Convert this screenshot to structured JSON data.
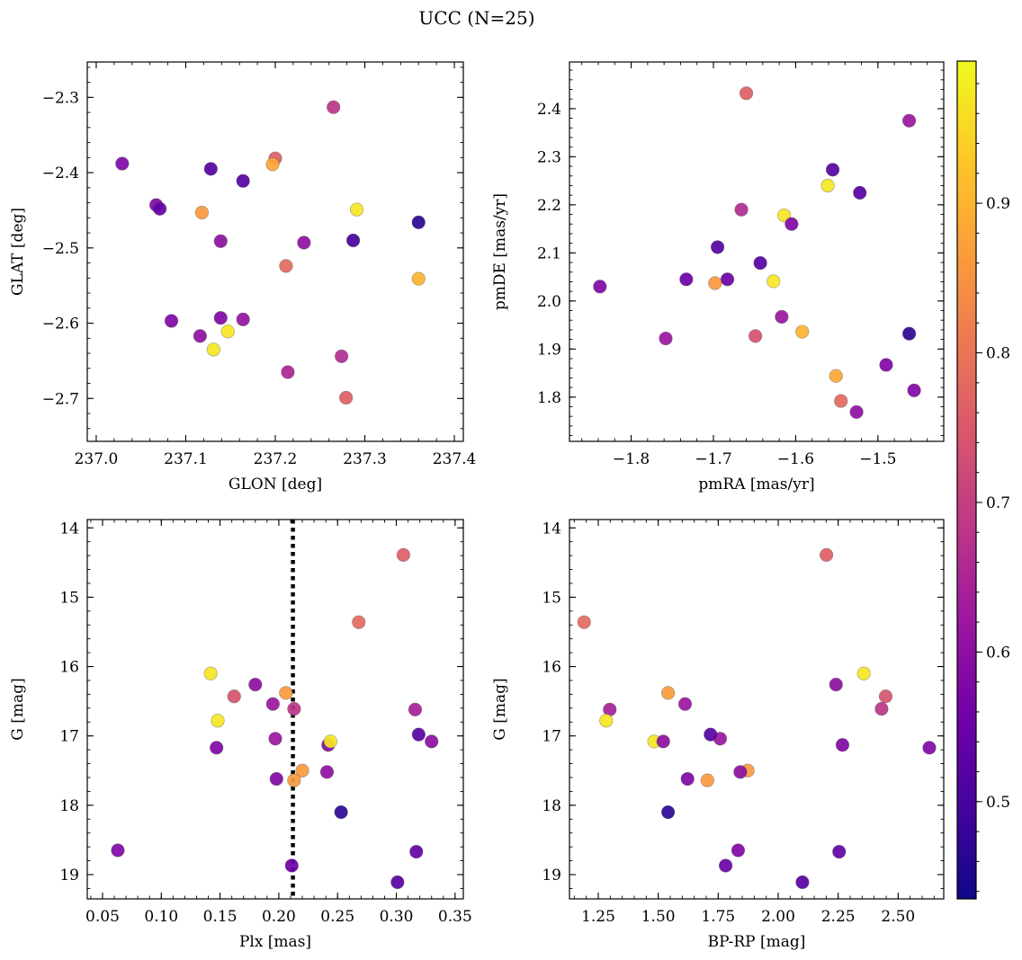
{
  "figure": {
    "suptitle": "UCC (N=25)"
  },
  "chart_data": [
    {
      "id": "glon-glat",
      "type": "scatter",
      "title": "",
      "xlabel": "GLON [deg]",
      "ylabel": "GLAT [deg]",
      "xlim": [
        236.99,
        237.41
      ],
      "ylim": [
        -2.757,
        -2.253
      ],
      "xticks": [
        237.0,
        237.1,
        237.2,
        237.3,
        237.4
      ],
      "xtick_labels": [
        "237.0",
        "237.1",
        "237.2",
        "237.3",
        "237.4"
      ],
      "xminor": 0.02,
      "yticks": [
        -2.3,
        -2.4,
        -2.5,
        -2.6,
        -2.7
      ],
      "ytick_labels": [
        "−2.3",
        "−2.4",
        "−2.5",
        "−2.6",
        "−2.7"
      ],
      "yminor": 0.02,
      "grid": false,
      "points": [
        {
          "x": 237.265,
          "y": -2.313,
          "c": 0.68
        },
        {
          "x": 237.029,
          "y": -2.388,
          "c": 0.58
        },
        {
          "x": 237.128,
          "y": -2.395,
          "c": 0.52
        },
        {
          "x": 237.164,
          "y": -2.411,
          "c": 0.52
        },
        {
          "x": 237.2,
          "y": -2.381,
          "c": 0.76
        },
        {
          "x": 237.197,
          "y": -2.389,
          "c": 0.88
        },
        {
          "x": 237.067,
          "y": -2.443,
          "c": 0.58
        },
        {
          "x": 237.071,
          "y": -2.448,
          "c": 0.54
        },
        {
          "x": 237.118,
          "y": -2.453,
          "c": 0.86
        },
        {
          "x": 237.291,
          "y": -2.449,
          "c": 0.97
        },
        {
          "x": 237.36,
          "y": -2.466,
          "c": 0.47
        },
        {
          "x": 237.139,
          "y": -2.491,
          "c": 0.6
        },
        {
          "x": 237.232,
          "y": -2.493,
          "c": 0.6
        },
        {
          "x": 237.287,
          "y": -2.49,
          "c": 0.5
        },
        {
          "x": 237.212,
          "y": -2.524,
          "c": 0.78
        },
        {
          "x": 237.36,
          "y": -2.541,
          "c": 0.9
        },
        {
          "x": 237.084,
          "y": -2.597,
          "c": 0.58
        },
        {
          "x": 237.139,
          "y": -2.593,
          "c": 0.58
        },
        {
          "x": 237.164,
          "y": -2.595,
          "c": 0.61
        },
        {
          "x": 237.147,
          "y": -2.611,
          "c": 0.97
        },
        {
          "x": 237.116,
          "y": -2.617,
          "c": 0.6
        },
        {
          "x": 237.131,
          "y": -2.635,
          "c": 0.97
        },
        {
          "x": 237.274,
          "y": -2.644,
          "c": 0.66
        },
        {
          "x": 237.214,
          "y": -2.665,
          "c": 0.65
        },
        {
          "x": 237.279,
          "y": -2.699,
          "c": 0.76
        }
      ]
    },
    {
      "id": "pm",
      "type": "scatter",
      "title": "",
      "xlabel": "pmRA [mas/yr]",
      "ylabel": "pmDE [mas/yr]",
      "xlim": [
        -1.875,
        -1.42
      ],
      "ylim": [
        1.708,
        2.497
      ],
      "xticks": [
        -1.8,
        -1.7,
        -1.6,
        -1.5
      ],
      "xtick_labels": [
        "−1.8",
        "−1.7",
        "−1.6",
        "−1.5"
      ],
      "xminor": 0.02,
      "yticks": [
        1.8,
        1.9,
        2.0,
        2.1,
        2.2,
        2.3,
        2.4
      ],
      "ytick_labels": [
        "1.8",
        "1.9",
        "2.0",
        "2.1",
        "2.2",
        "2.3",
        "2.4"
      ],
      "yminor": 0.02,
      "grid": false,
      "points": [
        {
          "x": -1.66,
          "y": 2.432,
          "c": 0.76
        },
        {
          "x": -1.462,
          "y": 2.375,
          "c": 0.62
        },
        {
          "x": -1.555,
          "y": 2.273,
          "c": 0.52
        },
        {
          "x": -1.561,
          "y": 2.24,
          "c": 0.97
        },
        {
          "x": -1.522,
          "y": 2.225,
          "c": 0.52
        },
        {
          "x": -1.666,
          "y": 2.19,
          "c": 0.66
        },
        {
          "x": -1.614,
          "y": 2.178,
          "c": 0.97
        },
        {
          "x": -1.605,
          "y": 2.16,
          "c": 0.58
        },
        {
          "x": -1.695,
          "y": 2.112,
          "c": 0.52
        },
        {
          "x": -1.643,
          "y": 2.079,
          "c": 0.52
        },
        {
          "x": -1.733,
          "y": 2.045,
          "c": 0.55
        },
        {
          "x": -1.683,
          "y": 2.045,
          "c": 0.55
        },
        {
          "x": -1.698,
          "y": 2.037,
          "c": 0.86
        },
        {
          "x": -1.627,
          "y": 2.041,
          "c": 0.97
        },
        {
          "x": -1.838,
          "y": 2.03,
          "c": 0.58
        },
        {
          "x": -1.617,
          "y": 1.967,
          "c": 0.62
        },
        {
          "x": -1.758,
          "y": 1.922,
          "c": 0.62
        },
        {
          "x": -1.649,
          "y": 1.927,
          "c": 0.74
        },
        {
          "x": -1.592,
          "y": 1.936,
          "c": 0.9
        },
        {
          "x": -1.462,
          "y": 1.932,
          "c": 0.47
        },
        {
          "x": -1.49,
          "y": 1.867,
          "c": 0.58
        },
        {
          "x": -1.551,
          "y": 1.844,
          "c": 0.88
        },
        {
          "x": -1.545,
          "y": 1.792,
          "c": 0.78
        },
        {
          "x": -1.456,
          "y": 1.814,
          "c": 0.58
        },
        {
          "x": -1.526,
          "y": 1.769,
          "c": 0.6
        }
      ]
    },
    {
      "id": "plx-g",
      "type": "scatter",
      "title": "",
      "xlabel": "Plx [mas]",
      "ylabel": "G [mag]",
      "xlim": [
        0.037,
        0.357
      ],
      "ylim": [
        19.35,
        13.88
      ],
      "xticks": [
        0.05,
        0.1,
        0.15,
        0.2,
        0.25,
        0.3,
        0.35
      ],
      "xtick_labels": [
        "0.05",
        "0.10",
        "0.15",
        "0.20",
        "0.25",
        "0.30",
        "0.35"
      ],
      "xminor": 0.01,
      "yticks": [
        14,
        15,
        16,
        17,
        18,
        19
      ],
      "ytick_labels": [
        "14",
        "15",
        "16",
        "17",
        "18",
        "19"
      ],
      "yminor": 0.2,
      "grid": false,
      "vline": {
        "x": 0.212,
        "style": "dotted",
        "color": "#000000"
      },
      "points": [
        {
          "x": 0.306,
          "y": 14.39,
          "c": 0.76
        },
        {
          "x": 0.268,
          "y": 15.36,
          "c": 0.78
        },
        {
          "x": 0.142,
          "y": 16.1,
          "c": 0.97
        },
        {
          "x": 0.18,
          "y": 16.26,
          "c": 0.6
        },
        {
          "x": 0.162,
          "y": 16.43,
          "c": 0.74
        },
        {
          "x": 0.206,
          "y": 16.38,
          "c": 0.86
        },
        {
          "x": 0.195,
          "y": 16.54,
          "c": 0.62
        },
        {
          "x": 0.213,
          "y": 16.61,
          "c": 0.68
        },
        {
          "x": 0.316,
          "y": 16.62,
          "c": 0.64
        },
        {
          "x": 0.148,
          "y": 16.78,
          "c": 0.97
        },
        {
          "x": 0.197,
          "y": 17.04,
          "c": 0.62
        },
        {
          "x": 0.242,
          "y": 17.13,
          "c": 0.58
        },
        {
          "x": 0.244,
          "y": 17.08,
          "c": 0.97
        },
        {
          "x": 0.319,
          "y": 16.98,
          "c": 0.52
        },
        {
          "x": 0.33,
          "y": 17.08,
          "c": 0.6
        },
        {
          "x": 0.147,
          "y": 17.17,
          "c": 0.58
        },
        {
          "x": 0.22,
          "y": 17.5,
          "c": 0.86
        },
        {
          "x": 0.241,
          "y": 17.52,
          "c": 0.6
        },
        {
          "x": 0.198,
          "y": 17.62,
          "c": 0.58
        },
        {
          "x": 0.213,
          "y": 17.64,
          "c": 0.86
        },
        {
          "x": 0.253,
          "y": 18.1,
          "c": 0.47
        },
        {
          "x": 0.063,
          "y": 18.65,
          "c": 0.58
        },
        {
          "x": 0.317,
          "y": 18.67,
          "c": 0.54
        },
        {
          "x": 0.211,
          "y": 18.87,
          "c": 0.55
        },
        {
          "x": 0.301,
          "y": 19.11,
          "c": 0.52
        }
      ]
    },
    {
      "id": "cmd",
      "type": "scatter",
      "title": "",
      "xlabel": "BP-RP [mag]",
      "ylabel": "G [mag]",
      "xlim": [
        1.13,
        2.69
      ],
      "ylim": [
        19.35,
        13.88
      ],
      "xticks": [
        1.25,
        1.5,
        1.75,
        2.0,
        2.25,
        2.5
      ],
      "xtick_labels": [
        "1.25",
        "1.50",
        "1.75",
        "2.00",
        "2.25",
        "2.50"
      ],
      "xminor": 0.05,
      "yticks": [
        14,
        15,
        16,
        17,
        18,
        19
      ],
      "ytick_labels": [
        "14",
        "15",
        "16",
        "17",
        "18",
        "19"
      ],
      "yminor": 0.2,
      "grid": false,
      "points": [
        {
          "x": 2.201,
          "y": 14.39,
          "c": 0.76
        },
        {
          "x": 1.191,
          "y": 15.36,
          "c": 0.78
        },
        {
          "x": 2.357,
          "y": 16.1,
          "c": 0.97
        },
        {
          "x": 2.241,
          "y": 16.26,
          "c": 0.6
        },
        {
          "x": 2.448,
          "y": 16.43,
          "c": 0.74
        },
        {
          "x": 1.541,
          "y": 16.38,
          "c": 0.86
        },
        {
          "x": 1.612,
          "y": 16.54,
          "c": 0.62
        },
        {
          "x": 2.431,
          "y": 16.61,
          "c": 0.68
        },
        {
          "x": 1.298,
          "y": 16.62,
          "c": 0.64
        },
        {
          "x": 1.283,
          "y": 16.78,
          "c": 0.97
        },
        {
          "x": 1.758,
          "y": 17.04,
          "c": 0.62
        },
        {
          "x": 2.268,
          "y": 17.13,
          "c": 0.58
        },
        {
          "x": 1.483,
          "y": 17.08,
          "c": 0.97
        },
        {
          "x": 1.718,
          "y": 16.98,
          "c": 0.52
        },
        {
          "x": 1.521,
          "y": 17.08,
          "c": 0.6
        },
        {
          "x": 2.63,
          "y": 17.17,
          "c": 0.58
        },
        {
          "x": 1.873,
          "y": 17.5,
          "c": 0.86
        },
        {
          "x": 1.842,
          "y": 17.52,
          "c": 0.6
        },
        {
          "x": 1.622,
          "y": 17.62,
          "c": 0.58
        },
        {
          "x": 1.705,
          "y": 17.64,
          "c": 0.86
        },
        {
          "x": 1.541,
          "y": 18.1,
          "c": 0.47
        },
        {
          "x": 1.833,
          "y": 18.65,
          "c": 0.58
        },
        {
          "x": 2.254,
          "y": 18.67,
          "c": 0.54
        },
        {
          "x": 1.781,
          "y": 18.87,
          "c": 0.55
        },
        {
          "x": 2.101,
          "y": 19.11,
          "c": 0.52
        }
      ]
    }
  ],
  "colorbar": {
    "cmap": "plasma",
    "range": [
      0.435,
      0.995
    ],
    "ticks": [
      0.5,
      0.6,
      0.7,
      0.8,
      0.9
    ],
    "tick_labels": [
      "0.5",
      "0.6",
      "0.7",
      "0.8",
      "0.9"
    ],
    "minor": 0.02,
    "colors": [
      "#0d0887",
      "#46039f",
      "#7201a8",
      "#9c179e",
      "#bd3786",
      "#d8576b",
      "#ed7953",
      "#fb9f3a",
      "#fdca26",
      "#f0f921"
    ]
  }
}
